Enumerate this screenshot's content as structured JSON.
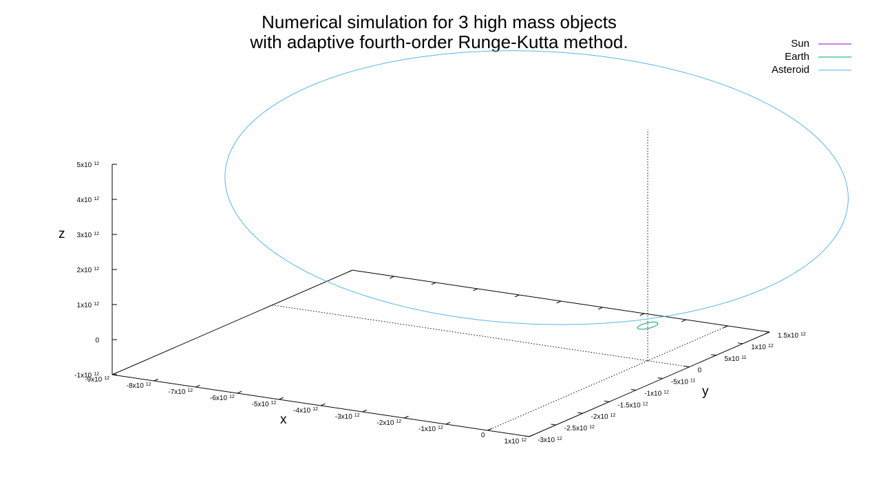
{
  "chart_data": {
    "type": "line3d",
    "title": [
      "Numerical simulation for 3 high mass objects",
      "with adaptive fourth-order Runge-Kutta method."
    ],
    "xlabel": "x",
    "ylabel": "y",
    "zlabel": "z",
    "xlim": [
      -9000000000000.0,
      1000000000000.0
    ],
    "ylim": [
      -3000000000000.0,
      1500000000000.0
    ],
    "zlim": [
      -1000000000000.0,
      5000000000000.0
    ],
    "x_ticks": [
      {
        "value": -9000000000000.0,
        "base": "-9x10",
        "exp": "12"
      },
      {
        "value": -8000000000000.0,
        "base": "-8x10",
        "exp": "12"
      },
      {
        "value": -7000000000000.0,
        "base": "-7x10",
        "exp": "12"
      },
      {
        "value": -6000000000000.0,
        "base": "-6x10",
        "exp": "12"
      },
      {
        "value": -5000000000000.0,
        "base": "-5x10",
        "exp": "12"
      },
      {
        "value": -4000000000000.0,
        "base": "-4x10",
        "exp": "12"
      },
      {
        "value": -3000000000000.0,
        "base": "-3x10",
        "exp": "12"
      },
      {
        "value": -2000000000000.0,
        "base": "-2x10",
        "exp": "12"
      },
      {
        "value": -1000000000000.0,
        "base": "-1x10",
        "exp": "12"
      },
      {
        "value": 0,
        "base": "0",
        "exp": ""
      },
      {
        "value": 1000000000000.0,
        "base": "1x10",
        "exp": "12"
      }
    ],
    "y_ticks": [
      {
        "value": -3000000000000.0,
        "base": "-3x10",
        "exp": "12"
      },
      {
        "value": -2500000000000.0,
        "base": "-2.5x10",
        "exp": "12"
      },
      {
        "value": -2000000000000.0,
        "base": "-2x10",
        "exp": "12"
      },
      {
        "value": -1500000000000.0,
        "base": "-1.5x10",
        "exp": "12"
      },
      {
        "value": -1000000000000.0,
        "base": "-1x10",
        "exp": "12"
      },
      {
        "value": -500000000000.0,
        "base": "-5x10",
        "exp": "11"
      },
      {
        "value": 0,
        "base": "0",
        "exp": ""
      },
      {
        "value": 500000000000.0,
        "base": "5x10",
        "exp": "11"
      },
      {
        "value": 1000000000000.0,
        "base": "1x10",
        "exp": "12"
      },
      {
        "value": 1500000000000.0,
        "base": "1.5x10",
        "exp": "12"
      }
    ],
    "z_ticks": [
      {
        "value": -1000000000000.0,
        "base": "-1x10",
        "exp": "12"
      },
      {
        "value": 0,
        "base": "0",
        "exp": ""
      },
      {
        "value": 1000000000000.0,
        "base": "1x10",
        "exp": "12"
      },
      {
        "value": 2000000000000.0,
        "base": "2x10",
        "exp": "12"
      },
      {
        "value": 3000000000000.0,
        "base": "3x10",
        "exp": "12"
      },
      {
        "value": 4000000000000.0,
        "base": "4x10",
        "exp": "12"
      },
      {
        "value": 5000000000000.0,
        "base": "5x10",
        "exp": "12"
      }
    ],
    "legend_position": "top-right",
    "series": [
      {
        "name": "Sun",
        "color": "#9400d3",
        "orbit": {
          "center": [
            0,
            0,
            0
          ],
          "radius": 0,
          "z": 0,
          "samples": 2
        }
      },
      {
        "name": "Earth",
        "color": "#009e73",
        "orbit": {
          "center": [
            0,
            0,
            0
          ],
          "radius": 150000000000.0,
          "z": 0,
          "samples": 90
        }
      },
      {
        "name": "Asteroid",
        "color": "#56b4e9",
        "orbit": {
          "center": [
            -4200000000000.0,
            1200000000000.0,
            2400000000000.0
          ],
          "radius": 4600000000000.0,
          "z_amplitude": 2600000000000.0,
          "phase_deg": 200,
          "samples": 360
        }
      }
    ]
  }
}
